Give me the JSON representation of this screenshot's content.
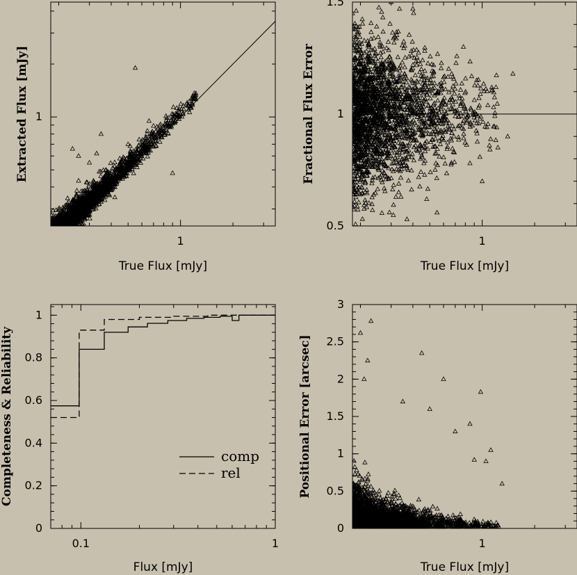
{
  "colors": {
    "background": "#c8c0ae",
    "ink": "#000000"
  },
  "chart_data": [
    {
      "type": "scatter",
      "xlabel": "True Flux [mJy]",
      "ylabel": "Extracted Flux [mJy]",
      "xscale": "log",
      "yscale": "log",
      "xlim": [
        0.18,
        3.5
      ],
      "ylim": [
        0.24,
        4.5
      ],
      "xticks": [
        {
          "v": 1,
          "label": "1"
        }
      ],
      "yticks": [
        {
          "v": 1,
          "label": "1"
        }
      ],
      "trend_line": [
        [
          0.18,
          0.18
        ],
        [
          3.5,
          3.5
        ]
      ],
      "marker": "triangle",
      "n_points": 2300,
      "seed": 11,
      "outliers": [
        [
          0.26,
          0.6
        ],
        [
          0.3,
          0.55
        ],
        [
          0.35,
          0.8
        ],
        [
          0.42,
          0.35
        ],
        [
          0.55,
          1.9
        ],
        [
          0.9,
          0.48
        ],
        [
          0.66,
          0.95
        ],
        [
          0.33,
          0.62
        ],
        [
          0.24,
          0.66
        ],
        [
          0.5,
          0.7
        ]
      ]
    },
    {
      "type": "scatter",
      "xlabel": "True Flux [mJy]",
      "ylabel": "Fractional Flux Error",
      "xscale": "log",
      "yscale": "linear",
      "xlim": [
        0.18,
        3.5
      ],
      "ylim": [
        0.5,
        1.5
      ],
      "xticks": [
        {
          "v": 1,
          "label": "1"
        }
      ],
      "yticks": [
        {
          "v": 0.5,
          "label": "0.5"
        },
        {
          "v": 1,
          "label": "1"
        },
        {
          "v": 1.5,
          "label": "1.5"
        }
      ],
      "trend_line": [
        [
          0.18,
          1.0
        ],
        [
          3.5,
          1.0
        ]
      ],
      "marker": "triangle",
      "n_points": 2300,
      "seed": 23,
      "outliers": [
        [
          0.55,
          0.56
        ],
        [
          0.85,
          0.78
        ],
        [
          1.0,
          0.7
        ],
        [
          1.1,
          0.86
        ],
        [
          0.48,
          0.62
        ],
        [
          0.37,
          0.53
        ],
        [
          1.5,
          1.18
        ],
        [
          1.2,
          1.12
        ],
        [
          0.3,
          1.5
        ],
        [
          0.4,
          1.47
        ],
        [
          0.78,
          1.3
        ],
        [
          1.4,
          0.9
        ]
      ]
    },
    {
      "type": "line",
      "step": true,
      "xlabel": "Flux [mJy]",
      "ylabel": "Completeness & Reliability",
      "xscale": "log",
      "yscale": "linear",
      "xlim": [
        0.07,
        1.0
      ],
      "ylim": [
        0,
        1.05
      ],
      "xticks": [
        {
          "v": 0.1,
          "label": "0.1"
        },
        {
          "v": 1,
          "label": "1"
        }
      ],
      "yticks": [
        {
          "v": 0,
          "label": "0"
        },
        {
          "v": 0.2,
          "label": "0.2"
        },
        {
          "v": 0.4,
          "label": "0.4"
        },
        {
          "v": 0.6,
          "label": "0.6"
        },
        {
          "v": 0.8,
          "label": "0.8"
        },
        {
          "v": 1,
          "label": "1"
        }
      ],
      "series": [
        {
          "name": "comp",
          "dash": "solid",
          "edges": [
            0.07,
            0.098,
            0.132,
            0.175,
            0.22,
            0.28,
            0.35,
            0.43,
            0.52,
            0.6,
            0.65,
            1.0
          ],
          "values": [
            0.575,
            0.84,
            0.92,
            0.945,
            0.962,
            0.975,
            0.985,
            0.99,
            0.995,
            0.975,
            1.0
          ]
        },
        {
          "name": "rel",
          "dash": "dashed",
          "edges": [
            0.07,
            0.098,
            0.132,
            0.2,
            0.3,
            0.45,
            0.65,
            1.0
          ],
          "values": [
            0.52,
            0.93,
            0.98,
            0.99,
            0.995,
            1.0,
            1.0
          ]
        }
      ],
      "legend": "bottom-right"
    },
    {
      "type": "scatter",
      "xlabel": "True Flux [mJy]",
      "ylabel": "Positional Error [arcsec]",
      "xscale": "log",
      "yscale": "linear",
      "xlim": [
        0.18,
        3.5
      ],
      "ylim": [
        0,
        3
      ],
      "xticks": [
        {
          "v": 1,
          "label": "1"
        }
      ],
      "yticks": [
        {
          "v": 0,
          "label": "0"
        },
        {
          "v": 0.5,
          "label": "0.5"
        },
        {
          "v": 1,
          "label": "1"
        },
        {
          "v": 1.5,
          "label": "1.5"
        },
        {
          "v": 2,
          "label": "2"
        },
        {
          "v": 2.5,
          "label": "2.5"
        },
        {
          "v": 3,
          "label": "3"
        }
      ],
      "marker": "triangle",
      "n_points": 2200,
      "seed": 37,
      "outliers": [
        [
          0.2,
          2.62
        ],
        [
          0.23,
          2.78
        ],
        [
          0.22,
          2.25
        ],
        [
          0.21,
          2.0
        ],
        [
          0.45,
          2.35
        ],
        [
          0.6,
          2.0
        ],
        [
          0.98,
          1.83
        ],
        [
          0.85,
          1.4
        ],
        [
          1.12,
          1.05
        ],
        [
          0.7,
          1.3
        ],
        [
          0.9,
          0.92
        ],
        [
          0.35,
          1.7
        ],
        [
          0.5,
          1.6
        ],
        [
          1.05,
          0.9
        ],
        [
          1.3,
          0.6
        ]
      ]
    }
  ]
}
